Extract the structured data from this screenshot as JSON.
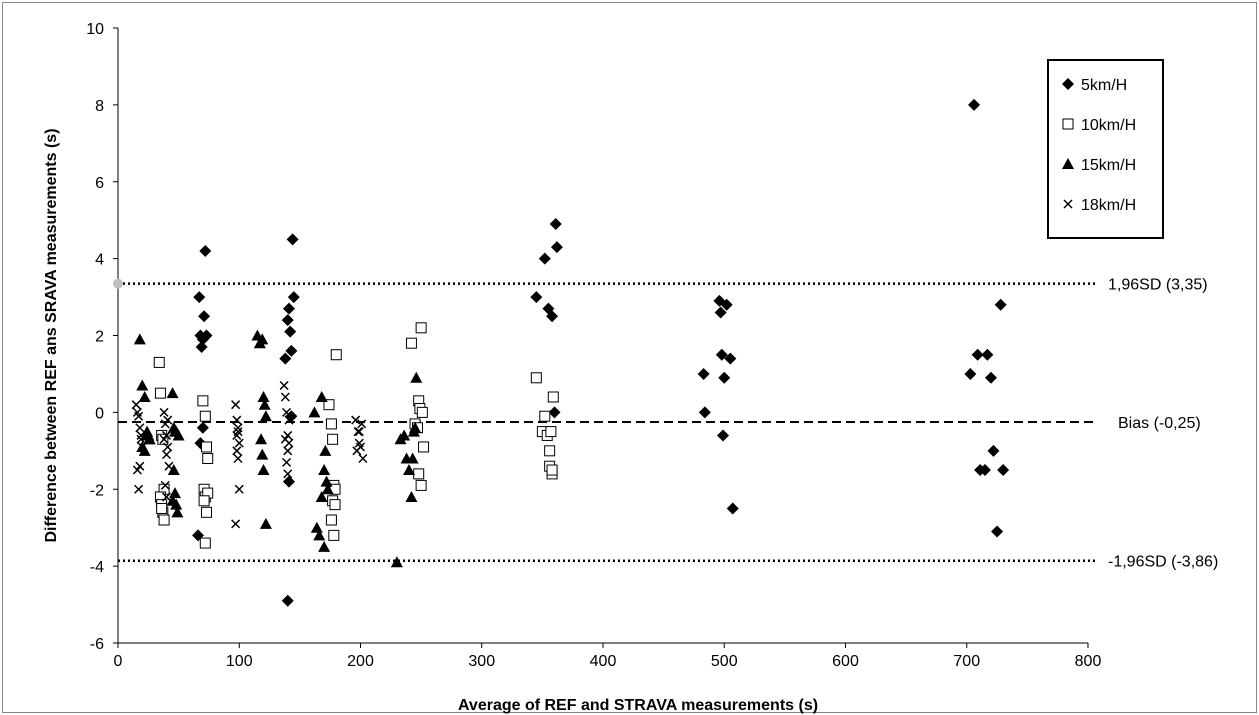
{
  "chart_data": {
    "type": "scatter",
    "xlabel": "Average of REF and STRAVA measurements (s)",
    "ylabel": "Difference between REF ans SRAVA measurements (s)",
    "xlim": [
      0,
      800
    ],
    "ylim": [
      -6,
      10
    ],
    "x_ticks": [
      "0",
      "100",
      "200",
      "300",
      "400",
      "500",
      "600",
      "700",
      "800"
    ],
    "y_ticks": [
      "-6",
      "-4",
      "-2",
      "0",
      "2",
      "4",
      "6",
      "8",
      "10"
    ],
    "grid": false,
    "legend_position": "top-right",
    "reference_lines": [
      {
        "label": "1,96SD (3,35)",
        "y": 3.35,
        "style": "dotted"
      },
      {
        "label": "Bias (-0,25)",
        "y": -0.25,
        "style": "dashed"
      },
      {
        "label": "-1,96SD (-3,86)",
        "y": -3.86,
        "style": "dotted"
      }
    ],
    "series": [
      {
        "name": "5km/H",
        "marker": "diamond-filled",
        "x": [
          67,
          68,
          69,
          70,
          71,
          72,
          73,
          70,
          68,
          66,
          138,
          140,
          141,
          142,
          143,
          144,
          145,
          141,
          140,
          143,
          345,
          352,
          355,
          358,
          360,
          361,
          362,
          483,
          484,
          496,
          497,
          498,
          500,
          502,
          505,
          507,
          499,
          703,
          706,
          709,
          711,
          715,
          717,
          720,
          722,
          725,
          728,
          730
        ],
        "y": [
          3.0,
          2.0,
          1.7,
          1.9,
          2.5,
          4.2,
          2.0,
          -0.4,
          -0.8,
          -3.2,
          1.4,
          2.4,
          2.7,
          2.1,
          1.6,
          4.5,
          3.0,
          -1.8,
          -4.9,
          -0.1,
          3.0,
          4.0,
          2.7,
          2.5,
          0.0,
          4.9,
          4.3,
          1.0,
          0.0,
          2.9,
          2.6,
          1.5,
          0.9,
          2.8,
          1.4,
          -2.5,
          -0.6,
          1.0,
          8.0,
          1.5,
          -1.5,
          -1.5,
          1.5,
          0.9,
          -1.0,
          -3.1,
          2.8,
          -1.5
        ]
      },
      {
        "name": "10km/H",
        "marker": "square-open",
        "x": [
          34,
          35,
          36,
          37,
          38,
          35,
          36,
          37,
          38,
          36,
          70,
          72,
          73,
          74,
          71,
          72,
          73,
          72,
          74,
          71,
          174,
          176,
          177,
          178,
          179,
          180,
          177,
          176,
          178,
          179,
          242,
          245,
          247,
          248,
          249,
          250,
          251,
          252,
          248,
          250,
          345,
          350,
          352,
          354,
          356,
          358,
          359,
          356,
          357,
          358
        ],
        "y": [
          1.3,
          0.5,
          -0.6,
          -0.7,
          -2.0,
          -2.2,
          -2.4,
          -2.6,
          -2.8,
          -2.5,
          0.3,
          -0.1,
          -0.9,
          -1.2,
          -2.0,
          -2.2,
          -2.6,
          -3.4,
          -2.1,
          -2.3,
          0.2,
          -0.3,
          -0.7,
          -1.9,
          -2.0,
          1.5,
          -2.3,
          -2.8,
          -3.2,
          -2.4,
          1.8,
          -0.3,
          -0.4,
          0.3,
          0.1,
          2.2,
          0.0,
          -0.9,
          -1.6,
          -1.9,
          0.9,
          -0.5,
          -0.1,
          -0.6,
          -1.4,
          -1.6,
          0.4,
          -1.0,
          -0.5,
          -1.5
        ]
      },
      {
        "name": "15km/H",
        "marker": "triangle-filled",
        "x": [
          18,
          20,
          22,
          24,
          25,
          26,
          20,
          22,
          24,
          26,
          45,
          46,
          48,
          50,
          46,
          47,
          48,
          49,
          45,
          47,
          115,
          117,
          119,
          120,
          121,
          122,
          118,
          119,
          120,
          122,
          162,
          164,
          166,
          168,
          170,
          172,
          173,
          168,
          170,
          171,
          230,
          233,
          236,
          238,
          240,
          242,
          244,
          245,
          246,
          243
        ],
        "y": [
          1.9,
          0.7,
          0.4,
          -0.5,
          -0.6,
          -0.7,
          -0.9,
          -1.0,
          -0.6,
          -0.7,
          0.5,
          -0.4,
          -0.5,
          -0.6,
          -1.5,
          -2.1,
          -2.4,
          -2.6,
          -2.3,
          -0.5,
          2.0,
          1.8,
          1.9,
          0.4,
          0.2,
          -0.1,
          -0.7,
          -1.1,
          -1.5,
          -2.9,
          0.0,
          -3.0,
          -3.2,
          0.4,
          -1.5,
          -1.8,
          -2.0,
          -2.2,
          -3.5,
          -1.0,
          -3.9,
          -0.7,
          -0.6,
          -1.2,
          -1.5,
          -2.2,
          -0.5,
          -0.4,
          0.9,
          -1.2
        ]
      },
      {
        "name": "18km/H",
        "marker": "cross",
        "x": [
          15,
          16,
          17,
          18,
          19,
          20,
          16,
          17,
          18,
          19,
          38,
          39,
          40,
          41,
          42,
          39,
          40,
          41,
          38,
          40,
          97,
          98,
          99,
          100,
          98,
          99,
          100,
          97,
          98,
          99,
          137,
          138,
          139,
          140,
          141,
          139,
          140,
          141,
          138,
          140,
          196,
          198,
          200,
          202,
          199,
          197,
          201,
          199
        ],
        "y": [
          0.2,
          0.0,
          -0.1,
          -0.4,
          -0.7,
          -0.9,
          -1.5,
          -2.0,
          -1.4,
          -0.6,
          0.0,
          -0.3,
          -0.6,
          -0.9,
          -1.4,
          -1.9,
          -2.2,
          -0.2,
          -0.7,
          -1.1,
          0.2,
          -0.2,
          -0.5,
          -0.8,
          -1.0,
          -1.2,
          -2.0,
          -2.9,
          -0.6,
          -0.4,
          0.7,
          0.4,
          0.0,
          -0.6,
          -0.8,
          -1.3,
          -1.6,
          -0.2,
          -0.7,
          -1.0,
          -0.2,
          -0.5,
          -0.9,
          -1.2,
          -0.8,
          -1.0,
          -0.3,
          -0.5
        ]
      }
    ]
  }
}
